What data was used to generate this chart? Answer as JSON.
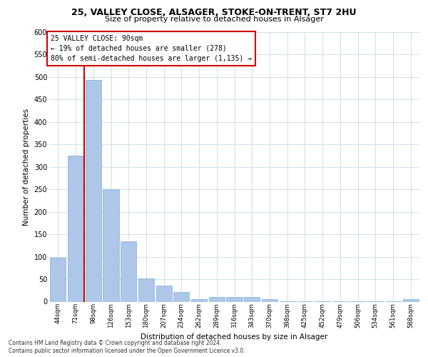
{
  "title1": "25, VALLEY CLOSE, ALSAGER, STOKE-ON-TRENT, ST7 2HU",
  "title2": "Size of property relative to detached houses in Alsager",
  "xlabel": "Distribution of detached houses by size in Alsager",
  "ylabel": "Number of detached properties",
  "categories": [
    "44sqm",
    "71sqm",
    "98sqm",
    "126sqm",
    "153sqm",
    "180sqm",
    "207sqm",
    "234sqm",
    "262sqm",
    "289sqm",
    "316sqm",
    "343sqm",
    "370sqm",
    "398sqm",
    "425sqm",
    "452sqm",
    "479sqm",
    "506sqm",
    "534sqm",
    "561sqm",
    "588sqm"
  ],
  "values": [
    98,
    325,
    494,
    250,
    135,
    51,
    35,
    21,
    6,
    10,
    10,
    10,
    5,
    1,
    1,
    1,
    1,
    1,
    1,
    1,
    5
  ],
  "bar_color": "#aec6e8",
  "bar_edge_color": "#7aafd4",
  "vline_color": "#cc0000",
  "annotation_title": "25 VALLEY CLOSE: 90sqm",
  "annotation_line2": "← 19% of detached houses are smaller (278)",
  "annotation_line3": "80% of semi-detached houses are larger (1,135) →",
  "annotation_box_color": "#cc0000",
  "annotation_box_fill": "#ffffff",
  "ylim": [
    0,
    600
  ],
  "yticks": [
    0,
    50,
    100,
    150,
    200,
    250,
    300,
    350,
    400,
    450,
    500,
    550,
    600
  ],
  "footer1": "Contains HM Land Registry data © Crown copyright and database right 2024.",
  "footer2": "Contains public sector information licensed under the Open Government Licence v3.0.",
  "background_color": "#ffffff",
  "grid_color": "#c8d8e8"
}
